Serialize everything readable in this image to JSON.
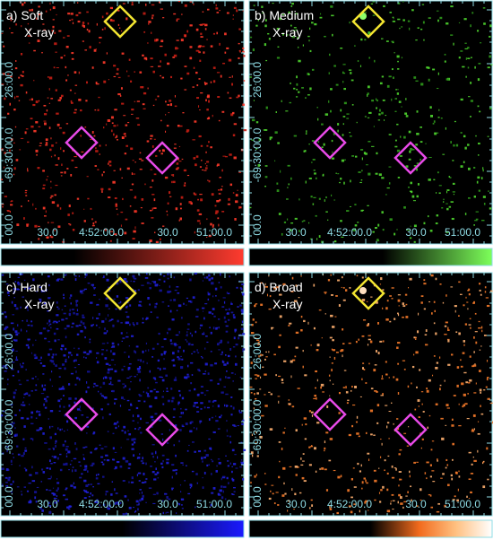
{
  "panels": [
    {
      "label": "a) Soft",
      "sublabel": "X-ray"
    },
    {
      "label": "b) Medium",
      "sublabel": "X-ray"
    },
    {
      "label": "c) Hard",
      "sublabel": "X-ray"
    },
    {
      "label": "d) Broad",
      "sublabel": "X-ray"
    }
  ],
  "axes": {
    "y_labels": [
      "00.0",
      "-69:30:00.0",
      "26:00.0"
    ],
    "x_labels": [
      "30.0",
      "4:52:00.0",
      "30.0",
      "51:00.0"
    ]
  }
}
